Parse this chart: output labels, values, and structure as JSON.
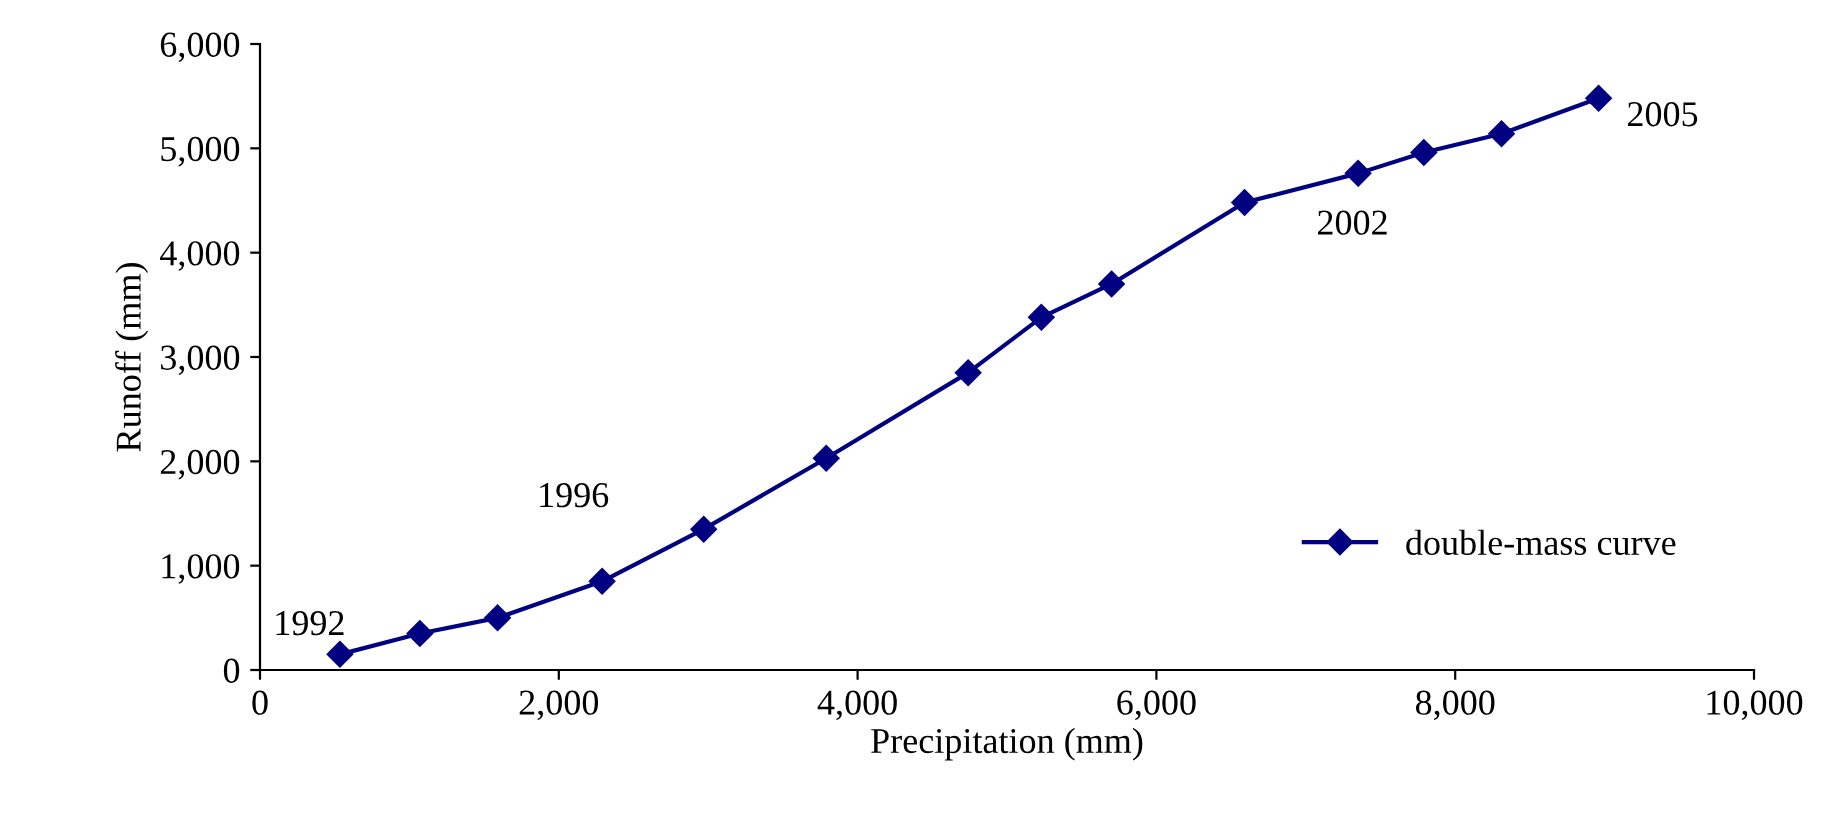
{
  "chart_data": {
    "type": "line",
    "xlabel": "Precipitation (mm)",
    "ylabel": "Runoff (mm)",
    "x": [
      535,
      1070,
      1590,
      2290,
      2970,
      3790,
      4740,
      5230,
      5700,
      6590,
      7350,
      7790,
      8310,
      8960
    ],
    "series": [
      {
        "name": "double-mass curve",
        "color": "#000080",
        "values": [
          150,
          350,
          500,
          850,
          1350,
          2030,
          2850,
          3380,
          3700,
          4480,
          4760,
          4960,
          5140,
          5480
        ]
      }
    ],
    "xlim": [
      0,
      10000
    ],
    "xticks": [
      0,
      {
        "value": 2000,
        "label": "2,000"
      },
      {
        "value": 4000,
        "label": "4,000"
      },
      {
        "value": 6000,
        "label": "6,000"
      },
      {
        "value": 8000,
        "label": "8,000"
      },
      {
        "value": 10000,
        "label": "10,000"
      }
    ],
    "ylim": [
      0,
      6000
    ],
    "yticks": [
      0,
      {
        "value": 1000,
        "label": "1,000"
      },
      {
        "value": 2000,
        "label": "2,000"
      },
      {
        "value": 3000,
        "label": "3,000"
      },
      {
        "value": 4000,
        "label": "4,000"
      },
      {
        "value": 5000,
        "label": "5,000"
      },
      {
        "value": 6000,
        "label": "6,000"
      }
    ],
    "annotations": [
      {
        "text": "1992",
        "x": 535,
        "y": 150
      },
      {
        "text": "1996",
        "x": 2970,
        "y": 1350
      },
      {
        "text": "2002",
        "x": 7350,
        "y": 4760
      },
      {
        "text": "2005",
        "x": 8960,
        "y": 5480
      }
    ],
    "marker": "diamond",
    "line_style": "solid",
    "grid": false,
    "legend": "bottom right"
  }
}
